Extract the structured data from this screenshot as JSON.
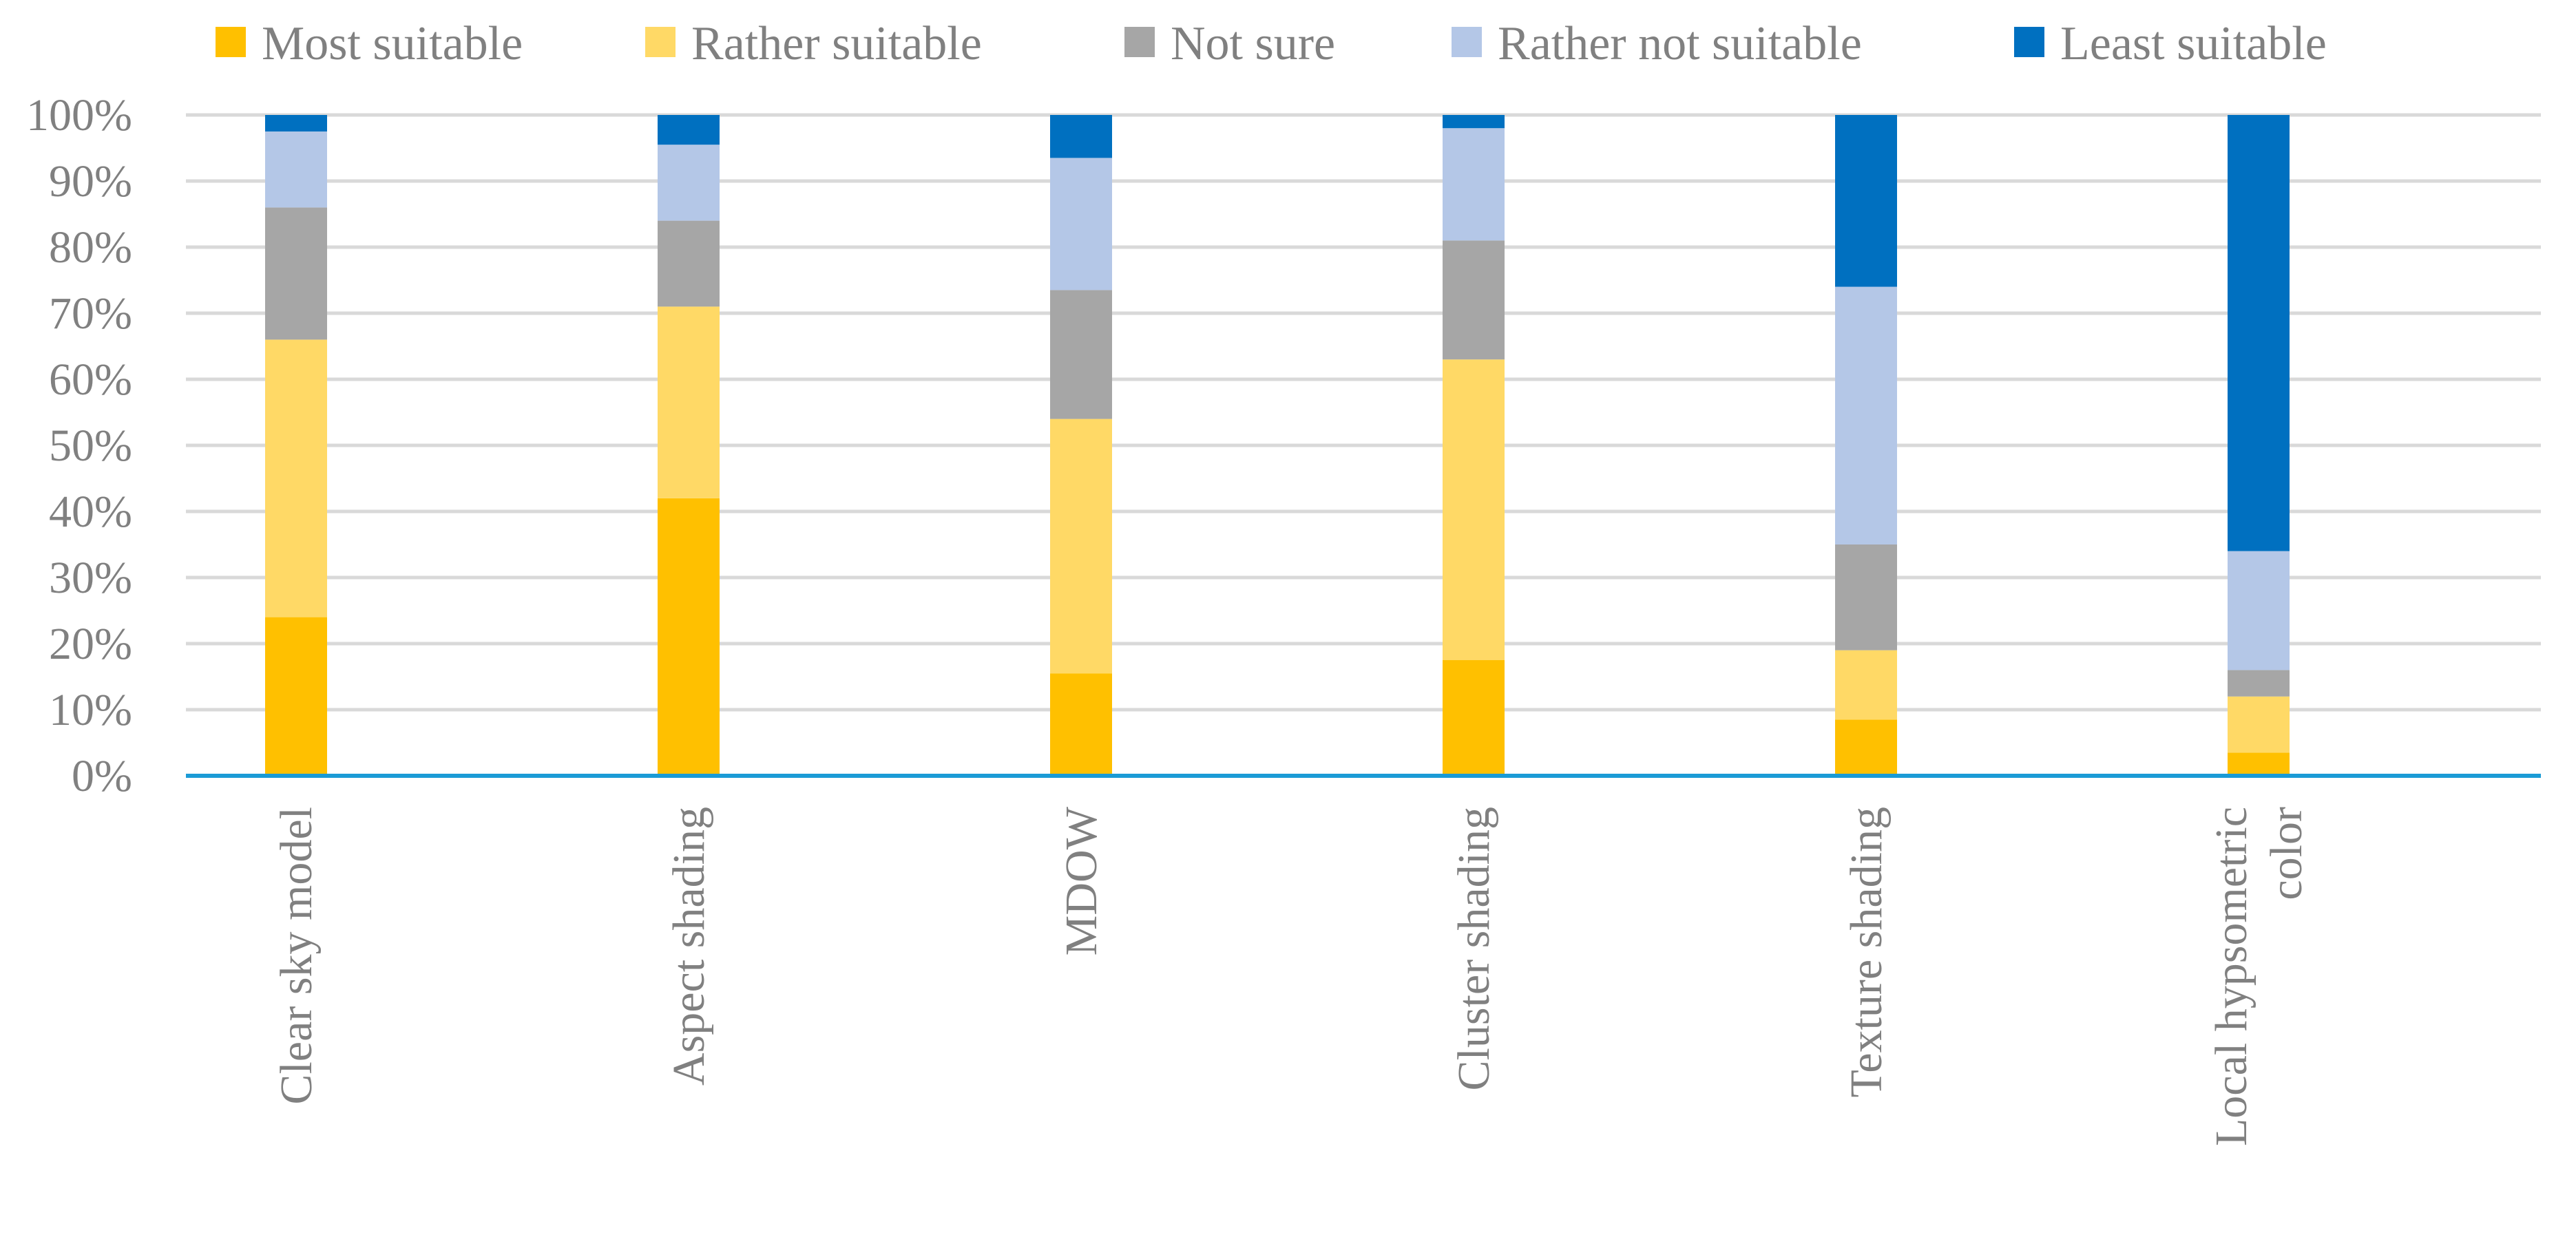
{
  "chart_data": {
    "type": "bar",
    "stacked": true,
    "percent": true,
    "title": "",
    "xlabel": "",
    "ylabel": "",
    "ylim": [
      0,
      100
    ],
    "yticks": [
      "0%",
      "10%",
      "20%",
      "30%",
      "40%",
      "50%",
      "60%",
      "70%",
      "80%",
      "90%",
      "100%"
    ],
    "grid": true,
    "legend_position": "top",
    "categories": [
      [
        "Clear sky model"
      ],
      [
        "Aspect shading"
      ],
      [
        "MDOW"
      ],
      [
        "Cluster shading"
      ],
      [
        "Texture shading"
      ],
      [
        "Local hypsometric",
        "color"
      ]
    ],
    "series": [
      {
        "name": "Most suitable",
        "color": "#ffc000",
        "values": [
          24,
          42,
          15.5,
          17.5,
          8.5,
          3.5
        ]
      },
      {
        "name": "Rather suitable",
        "color": "#ffd966",
        "values": [
          42,
          29,
          38.5,
          45.5,
          10.5,
          8.5
        ]
      },
      {
        "name": "Not sure",
        "color": "#a6a6a6",
        "values": [
          20,
          13,
          19.5,
          18,
          16,
          4
        ]
      },
      {
        "name": "Rather not suitable",
        "color": "#b4c7e7",
        "values": [
          11.5,
          11.5,
          20,
          17,
          39,
          18
        ]
      },
      {
        "name": "Least suitable",
        "color": "#0070c0",
        "values": [
          2.5,
          4.5,
          6.5,
          2,
          26,
          66
        ]
      }
    ]
  }
}
